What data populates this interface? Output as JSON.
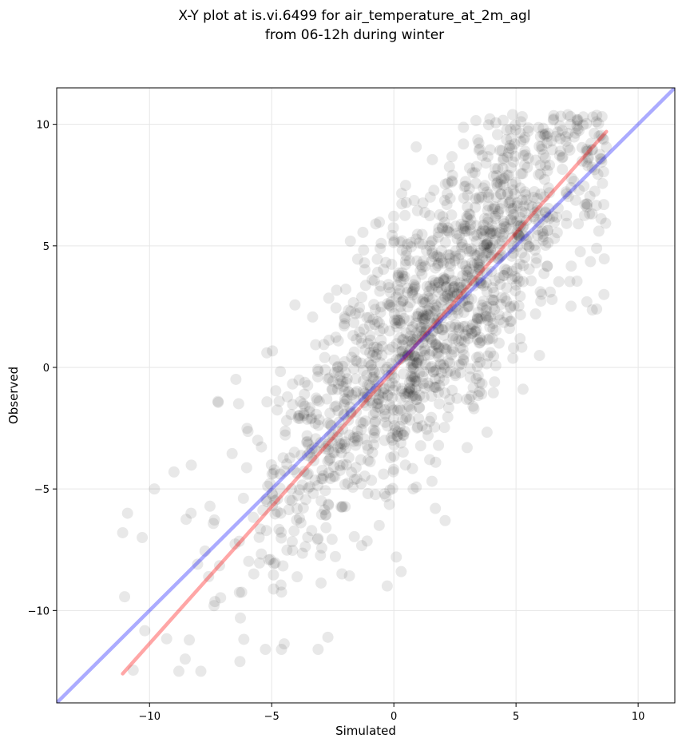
{
  "chart_data": {
    "type": "scatter",
    "title": "X-Y plot at is.vi.6499 for air_temperature_at_2m_agl",
    "subtitle": "from 06-12h during winter",
    "xlabel": "Simulated",
    "ylabel": "Observed",
    "xlim": [
      -13.8,
      11.5
    ],
    "ylim": [
      -13.8,
      11.5
    ],
    "xticks": [
      -10,
      -5,
      0,
      5,
      10
    ],
    "yticks": [
      -10,
      -5,
      0,
      5,
      10
    ],
    "xtick_labels": [
      "−10",
      "−5",
      "0",
      "5",
      "10"
    ],
    "ytick_labels": [
      "−10",
      "−5",
      "0",
      "5",
      "10"
    ],
    "grid": true,
    "point_color": "#000000",
    "point_alpha": 0.09,
    "points_estimated_count": 1500,
    "point_cloud_description": "dense cloud of semi-transparent points along the diagonal, observed roughly equal to simulated with spread of about ±3 degrees",
    "sample_points": [
      {
        "x": -11.1,
        "y": -6.8
      },
      {
        "x": -10.9,
        "y": -6.0
      },
      {
        "x": -10.3,
        "y": -7.0
      },
      {
        "x": -9.8,
        "y": -5.0
      },
      {
        "x": -9.0,
        "y": -4.3
      },
      {
        "x": -8.3,
        "y": -6.0
      },
      {
        "x": -8.8,
        "y": -12.5
      },
      {
        "x": -7.9,
        "y": -12.5
      },
      {
        "x": -6.3,
        "y": -12.1
      },
      {
        "x": -4.6,
        "y": -11.6
      },
      {
        "x": -3.1,
        "y": -11.6
      },
      {
        "x": -2.7,
        "y": -11.1
      },
      {
        "x": -7.2,
        "y": -1.4
      },
      {
        "x": -5.2,
        "y": 0.6
      },
      {
        "x": -3.9,
        "y": -2.0
      },
      {
        "x": -2.0,
        "y": 2.0
      },
      {
        "x": -1.2,
        "y": 4.3
      },
      {
        "x": 0.1,
        "y": 2.9
      },
      {
        "x": 1.0,
        "y": 2.2
      },
      {
        "x": 0.3,
        "y": -2.7
      },
      {
        "x": -0.6,
        "y": -6.5
      },
      {
        "x": 0.1,
        "y": -7.8
      },
      {
        "x": 0.3,
        "y": -8.4
      },
      {
        "x": 1.7,
        "y": -5.8
      },
      {
        "x": 2.1,
        "y": -6.3
      },
      {
        "x": 3.0,
        "y": -3.3
      },
      {
        "x": 3.5,
        "y": 1.0
      },
      {
        "x": 4.8,
        "y": 1.9
      },
      {
        "x": 4.9,
        "y": 0.8
      },
      {
        "x": 5.2,
        "y": 9.3
      },
      {
        "x": 6.2,
        "y": 9.6
      },
      {
        "x": 7.5,
        "y": 10.2
      },
      {
        "x": 7.9,
        "y": 6.6
      },
      {
        "x": 7.9,
        "y": 2.7
      },
      {
        "x": 8.3,
        "y": 2.4
      },
      {
        "x": 8.6,
        "y": 3.0
      },
      {
        "x": 8.3,
        "y": 4.9
      },
      {
        "x": 5.8,
        "y": 2.2
      },
      {
        "x": 6.4,
        "y": 3.1
      },
      {
        "x": 2.4,
        "y": 7.9
      },
      {
        "x": 3.1,
        "y": 8.2
      },
      {
        "x": 4.5,
        "y": 7.5
      }
    ],
    "series": [
      {
        "type": "line",
        "color": "#ff0000",
        "alpha": 0.35,
        "x": [
          -11.1,
          8.7
        ],
        "y": [
          -12.6,
          9.7
        ]
      },
      {
        "type": "line",
        "color": "#0000ff",
        "alpha": 0.33,
        "x": [
          -13.8,
          11.5
        ],
        "y": [
          -13.8,
          11.5
        ]
      }
    ]
  }
}
